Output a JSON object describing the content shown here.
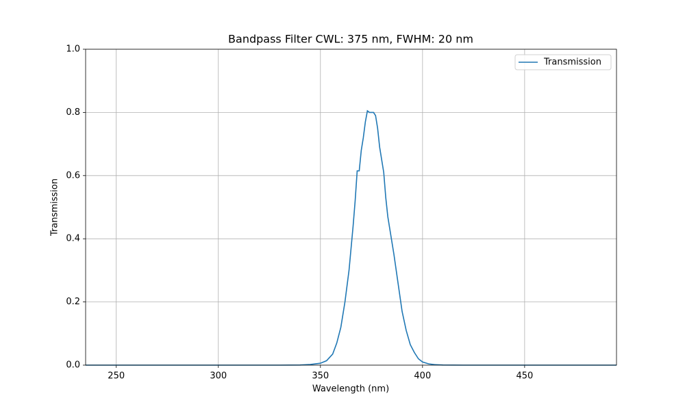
{
  "chart_data": {
    "type": "line",
    "title": "Bandpass Filter CWL: 375 nm, FWHM: 20 nm",
    "x_label": "Wavelength (nm)",
    "y_label": "Transmission",
    "x": [
      235,
      300,
      330,
      340,
      345,
      350,
      353,
      356,
      358,
      360,
      362,
      364,
      366,
      367,
      368,
      369,
      370,
      371,
      372,
      373,
      374,
      375,
      376,
      377,
      378,
      379,
      380,
      381,
      382,
      383,
      384,
      386,
      388,
      390,
      392,
      394,
      396,
      398,
      400,
      403,
      406,
      410,
      420,
      450,
      495
    ],
    "series": [
      {
        "name": "Transmission",
        "color": "#1f77b4",
        "values": [
          0,
          0,
          0,
          0.0005,
          0.002,
          0.006,
          0.014,
          0.035,
          0.07,
          0.12,
          0.2,
          0.3,
          0.44,
          0.52,
          0.615,
          0.615,
          0.68,
          0.72,
          0.77,
          0.805,
          0.8,
          0.8,
          0.8,
          0.79,
          0.75,
          0.69,
          0.65,
          0.61,
          0.53,
          0.47,
          0.43,
          0.35,
          0.26,
          0.17,
          0.11,
          0.065,
          0.04,
          0.02,
          0.01,
          0.004,
          0.0015,
          0.0005,
          0,
          0,
          0
        ]
      }
    ],
    "xlim": [
      235,
      495
    ],
    "ylim": [
      0,
      1
    ],
    "xticks": [
      250,
      300,
      350,
      400,
      450
    ],
    "yticks": [
      {
        "value": 0,
        "label": "0.0"
      },
      0.2,
      0.4,
      0.6,
      0.8,
      {
        "value": 1,
        "label": "1.0"
      }
    ],
    "grid": true,
    "legend": "upper right"
  }
}
